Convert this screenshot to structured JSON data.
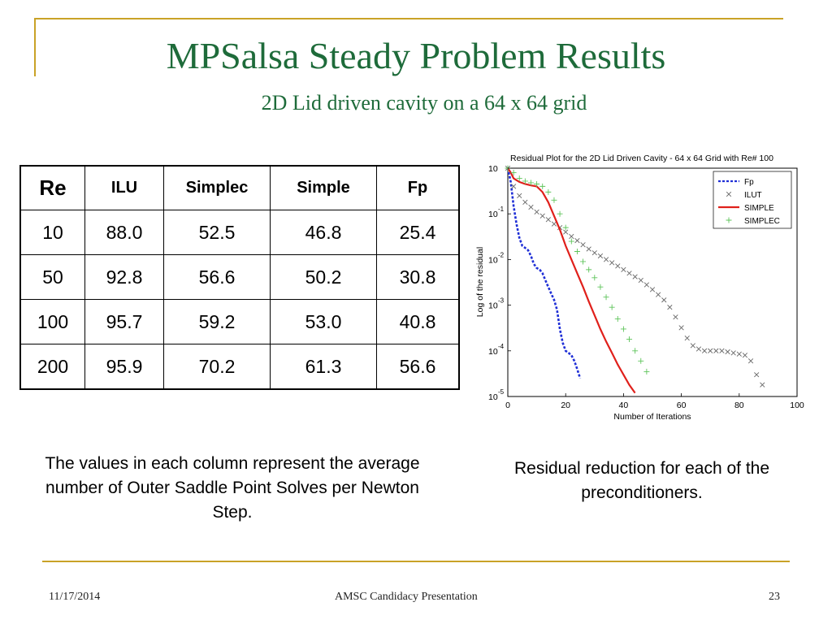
{
  "slide": {
    "title": "MPSalsa Steady Problem Results",
    "subtitle": "2D Lid driven cavity on a 64 x 64 grid",
    "caption_left": "The values in each column represent the average number of Outer Saddle Point Solves per Newton Step.",
    "caption_right": "Residual reduction for each of the preconditioners.",
    "accent_color": "#c9a227",
    "title_color": "#1e6b3a"
  },
  "table": {
    "headers": [
      "Re",
      "ILU",
      "Simplec",
      "Simple",
      "Fp"
    ],
    "rows": [
      [
        "10",
        "88.0",
        "52.5",
        "46.8",
        "25.4"
      ],
      [
        "50",
        "92.8",
        "56.6",
        "50.2",
        "30.8"
      ],
      [
        "100",
        "95.7",
        "59.2",
        "53.0",
        "40.8"
      ],
      [
        "200",
        "95.9",
        "70.2",
        "61.3",
        "56.6"
      ]
    ]
  },
  "footer": {
    "date": "11/17/2014",
    "center": "AMSC Candidacy Presentation",
    "page": "23"
  },
  "chart_data": {
    "type": "line",
    "title": "Residual Plot for the 2D Lid Driven Cavity - 64 x 64 Grid with Re# 100",
    "xlabel": "Number of Iterations",
    "ylabel": "Log of the residual",
    "xlim": [
      0,
      100
    ],
    "ylim_exponent": [
      -5,
      0
    ],
    "y_scale": "log",
    "x_ticks": [
      "0",
      "20",
      "40",
      "60",
      "80",
      "100"
    ],
    "y_ticks": [
      {
        "base": "10",
        "exp": ""
      },
      {
        "base": "10",
        "exp": "-1"
      },
      {
        "base": "10",
        "exp": "-2"
      },
      {
        "base": "10",
        "exp": "-3"
      },
      {
        "base": "10",
        "exp": "-4"
      },
      {
        "base": "10",
        "exp": "-5"
      }
    ],
    "legend_position": "top-right",
    "series": [
      {
        "name": "Fp",
        "color": "#1f2fd6",
        "style": "dashed",
        "x": [
          0,
          1,
          2,
          3,
          4,
          5,
          6,
          7,
          8,
          9,
          10,
          11,
          12,
          13,
          14,
          15,
          16,
          17,
          18,
          19,
          20,
          21,
          22,
          23,
          24,
          25
        ],
        "y": [
          1.0,
          0.5,
          0.15,
          0.06,
          0.03,
          0.02,
          0.018,
          0.016,
          0.012,
          0.008,
          0.0065,
          0.006,
          0.005,
          0.0035,
          0.0025,
          0.0018,
          0.0013,
          0.0008,
          0.0003,
          0.00015,
          0.0001,
          9e-05,
          8e-05,
          6e-05,
          4e-05,
          2.5e-05
        ]
      },
      {
        "name": "ILUT",
        "color": "#666666",
        "style": "markers",
        "x": [
          0,
          2,
          4,
          6,
          8,
          10,
          12,
          14,
          16,
          18,
          20,
          22,
          24,
          26,
          28,
          30,
          32,
          34,
          36,
          38,
          40,
          42,
          44,
          46,
          48,
          50,
          52,
          54,
          56,
          58,
          60,
          62,
          64,
          66,
          68,
          70,
          72,
          74,
          76,
          78,
          80,
          82,
          84,
          86,
          88
        ],
        "y": [
          1.0,
          0.4,
          0.25,
          0.18,
          0.14,
          0.11,
          0.09,
          0.075,
          0.06,
          0.05,
          0.04,
          0.032,
          0.026,
          0.021,
          0.017,
          0.014,
          0.012,
          0.01,
          0.0085,
          0.0072,
          0.006,
          0.005,
          0.0042,
          0.0035,
          0.0028,
          0.0022,
          0.0017,
          0.0013,
          0.0009,
          0.00055,
          0.00032,
          0.00019,
          0.00013,
          0.00011,
          0.0001,
          0.0001,
          0.0001,
          0.0001,
          9.5e-05,
          9e-05,
          8.5e-05,
          8e-05,
          6e-05,
          3e-05,
          1.8e-05
        ]
      },
      {
        "name": "SIMPLE",
        "color": "#e0201b",
        "style": "solid",
        "x": [
          0,
          1,
          2,
          4,
          6,
          8,
          10,
          12,
          14,
          16,
          18,
          20,
          22,
          24,
          26,
          28,
          30,
          32,
          34,
          36,
          38,
          40,
          42,
          44
        ],
        "y": [
          1.0,
          0.8,
          0.6,
          0.5,
          0.45,
          0.42,
          0.4,
          0.3,
          0.18,
          0.09,
          0.045,
          0.02,
          0.01,
          0.005,
          0.0025,
          0.0012,
          0.0006,
          0.0003,
          0.00016,
          9e-05,
          5e-05,
          3e-05,
          1.8e-05,
          1.2e-05
        ]
      },
      {
        "name": "SIMPLEC",
        "color": "#5ec45a",
        "style": "markers",
        "x": [
          0,
          2,
          4,
          6,
          8,
          10,
          12,
          14,
          16,
          18,
          20,
          22,
          24,
          26,
          28,
          30,
          32,
          34,
          36,
          38,
          40,
          42,
          44,
          46,
          48
        ],
        "y": [
          1.0,
          0.8,
          0.6,
          0.52,
          0.48,
          0.45,
          0.4,
          0.3,
          0.2,
          0.1,
          0.05,
          0.025,
          0.015,
          0.009,
          0.006,
          0.004,
          0.0025,
          0.0015,
          0.0009,
          0.0005,
          0.0003,
          0.00018,
          0.0001,
          6e-05,
          3.5e-05
        ]
      }
    ]
  }
}
